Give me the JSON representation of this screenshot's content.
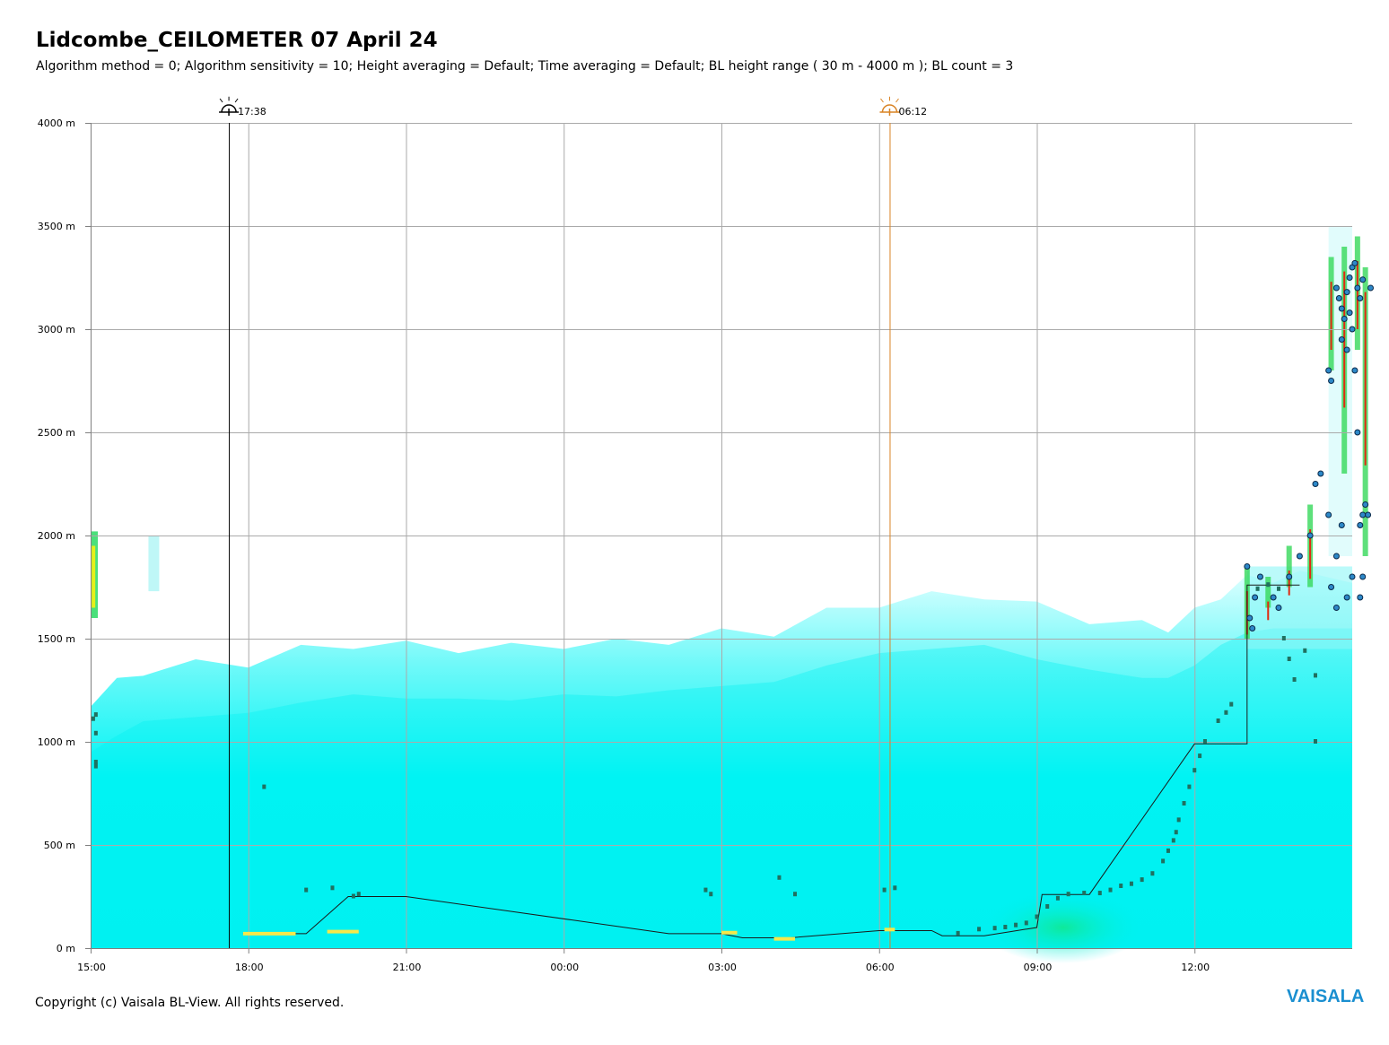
{
  "title": "Lidcombe_CEILOMETER 07 April 24",
  "subtitle": "Algorithm method = 0; Algorithm sensitivity = 10; Height averaging = Default; Time averaging = Default; BL height range ( 30 m - 4000 m ); BL count = 3",
  "footer": "Copyright (c) Vaisala BL-View. All rights reserved.",
  "logo": "VAISALA",
  "colors": {
    "backscatter_low": "#00f0f0",
    "backscatter_high": "#e8ffff",
    "sunset_line": "#000000",
    "sunrise_line": "#d98324",
    "bl_marker": "#207060",
    "cloud_dot": "#1f5fa0",
    "grid": "#aaaaaa"
  },
  "chart_data": {
    "type": "heatmap",
    "title": "Lidcombe_CEILOMETER 07 April 24",
    "x_range_hours": [
      15,
      39
    ],
    "ylim": [
      0,
      4000
    ],
    "y_unit": "m",
    "y_ticks": [
      "0 m",
      "500 m",
      "1000 m",
      "1500 m",
      "2000 m",
      "2500 m",
      "3000 m",
      "3500 m",
      "4000 m"
    ],
    "y_tick_values": [
      0,
      500,
      1000,
      1500,
      2000,
      2500,
      3000,
      3500,
      4000
    ],
    "x_ticks": [
      "15:00",
      "18:00",
      "21:00",
      "00:00",
      "03:00",
      "06:00",
      "09:00",
      "12:00"
    ],
    "x_tick_values": [
      15,
      18,
      21,
      24,
      27,
      30,
      33,
      36
    ],
    "grid": true,
    "events": [
      {
        "label": "17:38",
        "t": 17.63,
        "kind": "sunset",
        "icon": "sunset-icon"
      },
      {
        "label": "06:12",
        "t": 30.2,
        "kind": "sunrise",
        "icon": "sunrise-icon"
      }
    ],
    "aerosol_top": [
      [
        15.0,
        1200
      ],
      [
        15.5,
        1280
      ],
      [
        16.0,
        1350
      ],
      [
        17.0,
        1370
      ],
      [
        18.0,
        1390
      ],
      [
        19.0,
        1440
      ],
      [
        20.0,
        1480
      ],
      [
        21.0,
        1460
      ],
      [
        22.0,
        1460
      ],
      [
        23.0,
        1450
      ],
      [
        24.0,
        1480
      ],
      [
        25.0,
        1470
      ],
      [
        26.0,
        1500
      ],
      [
        27.0,
        1520
      ],
      [
        28.0,
        1540
      ],
      [
        29.0,
        1620
      ],
      [
        30.0,
        1680
      ],
      [
        31.0,
        1700
      ],
      [
        32.0,
        1720
      ],
      [
        33.0,
        1650
      ],
      [
        34.0,
        1600
      ],
      [
        35.0,
        1560
      ],
      [
        35.5,
        1560
      ],
      [
        36.0,
        1620
      ],
      [
        36.5,
        1720
      ],
      [
        37.0,
        1780
      ],
      [
        37.5,
        1800
      ],
      [
        38.0,
        1800
      ],
      [
        39.0,
        1800
      ]
    ],
    "bl_height_line": [
      [
        17.9,
        70
      ],
      [
        19.1,
        70
      ],
      [
        19.9,
        250
      ],
      [
        21.0,
        250
      ],
      [
        21.0,
        250
      ],
      [
        26.0,
        70
      ],
      [
        27.0,
        70
      ],
      [
        27.4,
        50
      ],
      [
        28.3,
        50
      ],
      [
        30.0,
        85
      ],
      [
        31.0,
        85
      ],
      [
        31.2,
        60
      ],
      [
        32.0,
        60
      ],
      [
        32.5,
        80
      ],
      [
        33.0,
        100
      ],
      [
        33.1,
        260
      ],
      [
        34.0,
        260
      ],
      [
        36.0,
        990
      ],
      [
        37.0,
        990
      ],
      [
        37.0,
        1760
      ],
      [
        38.0,
        1760
      ]
    ],
    "bl_markers": [
      [
        15.05,
        1110
      ],
      [
        15.1,
        1130
      ],
      [
        15.1,
        1040
      ],
      [
        15.1,
        900
      ],
      [
        15.1,
        880
      ],
      [
        18.3,
        780
      ],
      [
        19.1,
        280
      ],
      [
        19.6,
        290
      ],
      [
        20.0,
        250
      ],
      [
        20.1,
        260
      ],
      [
        26.7,
        280
      ],
      [
        26.8,
        260
      ],
      [
        28.1,
        340
      ],
      [
        28.4,
        260
      ],
      [
        30.1,
        280
      ],
      [
        30.3,
        290
      ],
      [
        31.5,
        70
      ],
      [
        31.9,
        90
      ],
      [
        32.2,
        95
      ],
      [
        32.4,
        100
      ],
      [
        32.6,
        110
      ],
      [
        32.8,
        120
      ],
      [
        33.0,
        150
      ],
      [
        33.2,
        200
      ],
      [
        33.4,
        240
      ],
      [
        33.6,
        260
      ],
      [
        33.9,
        265
      ],
      [
        34.2,
        265
      ],
      [
        34.4,
        280
      ],
      [
        34.6,
        300
      ],
      [
        34.8,
        310
      ],
      [
        35.0,
        330
      ],
      [
        35.2,
        360
      ],
      [
        35.4,
        420
      ],
      [
        35.5,
        470
      ],
      [
        35.6,
        520
      ],
      [
        35.65,
        560
      ],
      [
        35.7,
        620
      ],
      [
        35.8,
        700
      ],
      [
        35.9,
        780
      ],
      [
        36.0,
        860
      ],
      [
        36.1,
        930
      ],
      [
        36.2,
        1000
      ],
      [
        36.45,
        1100
      ],
      [
        36.6,
        1140
      ],
      [
        36.7,
        1180
      ],
      [
        37.2,
        1740
      ],
      [
        37.4,
        1760
      ],
      [
        37.6,
        1740
      ],
      [
        37.7,
        1500
      ],
      [
        37.8,
        1400
      ],
      [
        37.9,
        1300
      ],
      [
        38.1,
        1440
      ],
      [
        38.3,
        1000
      ],
      [
        38.3,
        1320
      ]
    ],
    "low_layer_segments": [
      [
        17.9,
        18.9,
        70
      ],
      [
        19.5,
        20.1,
        80
      ],
      [
        27.0,
        27.3,
        75
      ],
      [
        28.0,
        28.4,
        45
      ],
      [
        30.1,
        30.3,
        90
      ]
    ],
    "cloud_points": [
      [
        37.0,
        1850
      ],
      [
        37.05,
        1600
      ],
      [
        37.1,
        1550
      ],
      [
        37.15,
        1700
      ],
      [
        37.25,
        1800
      ],
      [
        37.5,
        1700
      ],
      [
        37.6,
        1650
      ],
      [
        37.8,
        1800
      ],
      [
        38.0,
        1900
      ],
      [
        38.2,
        2000
      ],
      [
        38.3,
        2250
      ],
      [
        38.4,
        2300
      ],
      [
        38.55,
        2100
      ],
      [
        38.6,
        1750
      ],
      [
        38.7,
        1900
      ],
      [
        38.8,
        2050
      ],
      [
        38.9,
        1700
      ],
      [
        39.0,
        1800
      ],
      [
        38.6,
        2750
      ],
      [
        38.55,
        2800
      ],
      [
        38.7,
        3200
      ],
      [
        38.75,
        3150
      ],
      [
        38.8,
        3100
      ],
      [
        38.85,
        3050
      ],
      [
        38.9,
        3180
      ],
      [
        38.95,
        3250
      ],
      [
        39.0,
        3300
      ],
      [
        39.05,
        3320
      ],
      [
        39.1,
        3200
      ],
      [
        39.15,
        3150
      ],
      [
        39.2,
        3240
      ],
      [
        38.8,
        2950
      ],
      [
        38.9,
        2900
      ],
      [
        38.95,
        3080
      ],
      [
        39.0,
        3000
      ],
      [
        39.05,
        2800
      ],
      [
        39.1,
        2500
      ],
      [
        39.15,
        2050
      ],
      [
        39.2,
        2100
      ],
      [
        38.7,
        1650
      ],
      [
        39.15,
        1700
      ],
      [
        39.2,
        1800
      ],
      [
        39.25,
        2150
      ],
      [
        39.3,
        2100
      ],
      [
        39.35,
        3200
      ]
    ]
  }
}
